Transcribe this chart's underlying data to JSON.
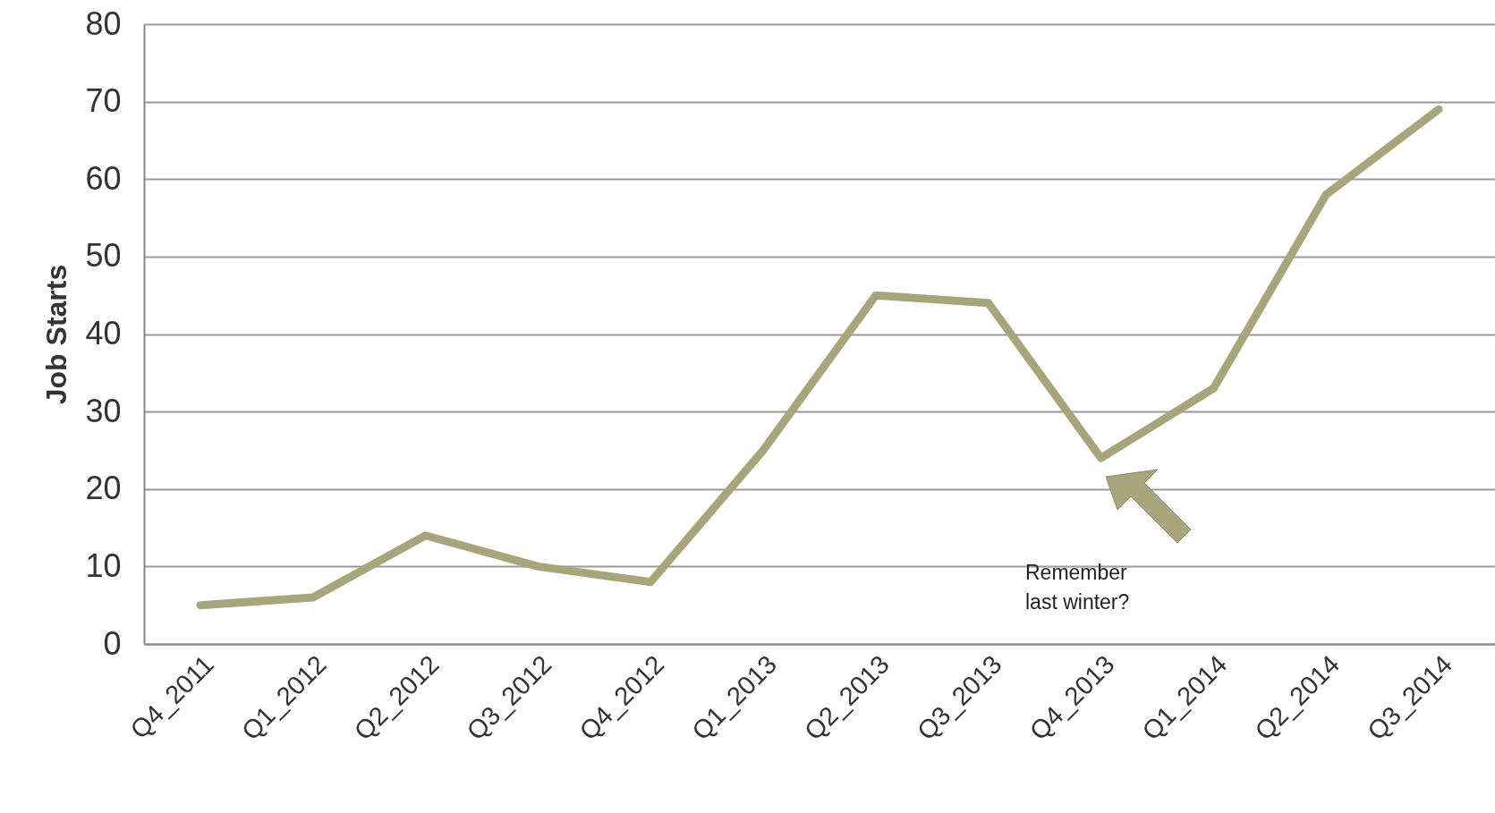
{
  "chart_data": {
    "type": "line",
    "ylabel": "Job Starts",
    "categories": [
      "Q4_2011",
      "Q1_2012",
      "Q2_2012",
      "Q3_2012",
      "Q4_2012",
      "Q1_2013",
      "Q2_2013",
      "Q3_2013",
      "Q4_2013",
      "Q1_2014",
      "Q2_2014",
      "Q3_2014"
    ],
    "series": [
      {
        "color": "#a8a57c",
        "values": [
          5,
          6,
          14,
          10,
          8,
          25,
          45,
          44,
          24,
          33,
          58,
          69
        ]
      }
    ],
    "ylim": [
      0,
      80
    ],
    "yticks": [
      0,
      10,
      20,
      30,
      40,
      50,
      60,
      70,
      80
    ],
    "grid": "y",
    "marker": "none",
    "line_style": "solid",
    "annotations": [
      "Remember\nlast winter?"
    ]
  }
}
